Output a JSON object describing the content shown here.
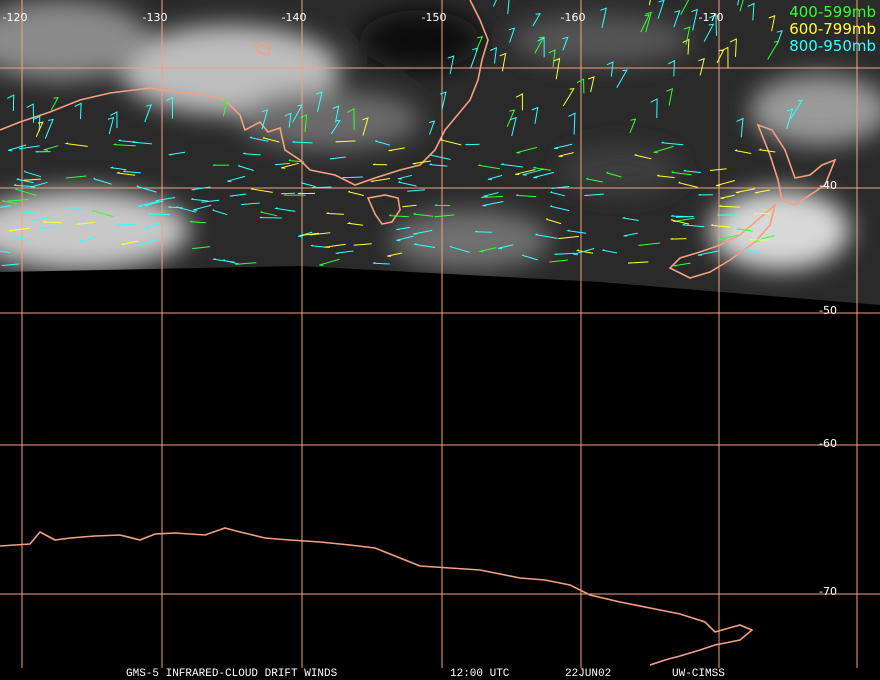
{
  "map": {
    "longitude_labels": [
      "-120",
      "-130",
      "-140",
      "-150",
      "-160",
      "-170"
    ],
    "latitude_labels": [
      "-40",
      "-50",
      "-60",
      "-70"
    ],
    "legend": [
      "400-599mb",
      "600-799mb",
      "800-950mb"
    ],
    "footer": [
      "GMS-5 INFRARED-CLOUD DRIFT WINDS",
      "12:00 UTC",
      "22JUN02",
      "UW-CIMSS"
    ]
  }
}
